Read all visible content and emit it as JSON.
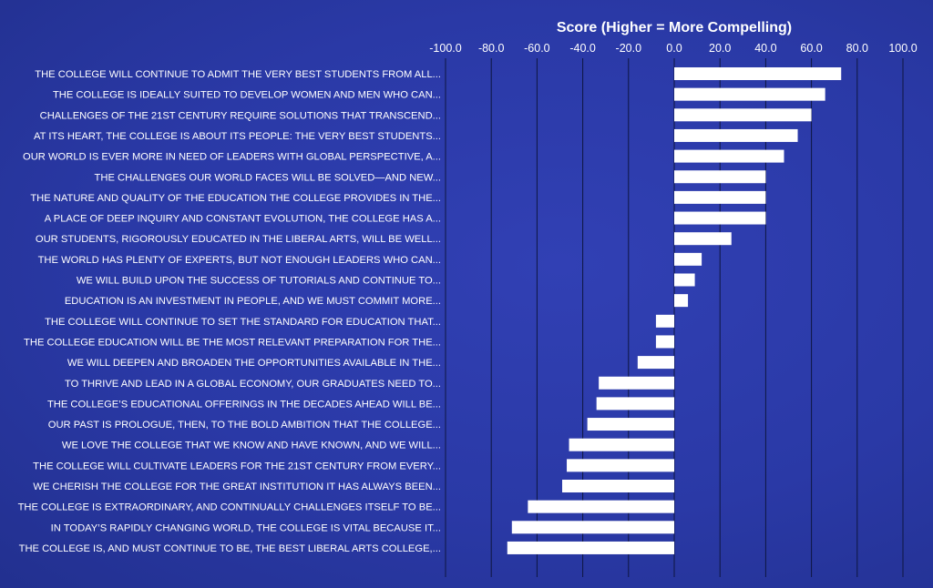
{
  "chart_data": {
    "type": "bar",
    "orientation": "horizontal",
    "title": "Score  (Higher = More Compelling)",
    "xlabel": "",
    "ylabel": "",
    "xlim": [
      -100,
      100
    ],
    "x_ticks": [
      "-100.0",
      "-80.0",
      "-60.0",
      "-40.0",
      "-20.0",
      "0.0",
      "20.0",
      "40.0",
      "60.0",
      "80.0",
      "100.0"
    ],
    "x_tick_values": [
      -100,
      -80,
      -60,
      -40,
      -20,
      0,
      20,
      40,
      60,
      80,
      100
    ],
    "grid": true,
    "legend": "none",
    "bar_color": "#ffffff",
    "background_color": "#2a3aa8",
    "categories": [
      "THE COLLEGE WILL CONTINUE TO ADMIT THE VERY BEST STUDENTS FROM ALL...",
      "THE COLLEGE IS IDEALLY SUITED TO DEVELOP WOMEN AND MEN WHO CAN...",
      "CHALLENGES OF THE 21ST CENTURY REQUIRE SOLUTIONS THAT TRANSCEND...",
      "AT ITS HEART, THE COLLEGE IS ABOUT ITS PEOPLE: THE VERY BEST STUDENTS...",
      "OUR WORLD IS EVER MORE IN NEED OF LEADERS WITH GLOBAL PERSPECTIVE, A...",
      "THE CHALLENGES OUR WORLD FACES WILL BE SOLVED—AND NEW...",
      "THE NATURE AND QUALITY OF THE EDUCATION THE COLLEGE PROVIDES IN THE...",
      "A PLACE OF DEEP INQUIRY AND CONSTANT EVOLUTION, THE COLLEGE HAS A...",
      "OUR STUDENTS, RIGOROUSLY EDUCATED IN THE LIBERAL ARTS, WILL BE WELL...",
      "THE WORLD HAS PLENTY OF EXPERTS, BUT NOT ENOUGH LEADERS WHO CAN...",
      "WE WILL BUILD UPON THE SUCCESS OF TUTORIALS AND CONTINUE TO...",
      "EDUCATION IS AN INVESTMENT IN PEOPLE, AND WE MUST COMMIT MORE...",
      "THE COLLEGE WILL CONTINUE TO SET THE STANDARD FOR EDUCATION THAT...",
      "THE COLLEGE EDUCATION WILL BE THE MOST RELEVANT PREPARATION FOR THE...",
      "WE WILL DEEPEN AND BROADEN THE OPPORTUNITIES AVAILABLE IN THE...",
      "TO THRIVE AND LEAD IN A GLOBAL ECONOMY, OUR GRADUATES NEED TO...",
      "THE COLLEGE’S EDUCATIONAL OFFERINGS IN THE DECADES AHEAD WILL BE...",
      "OUR PAST IS PROLOGUE, THEN, TO THE BOLD AMBITION THAT THE COLLEGE...",
      "WE LOVE THE COLLEGE THAT WE KNOW AND HAVE KNOWN, AND WE WILL...",
      "THE COLLEGE WILL CULTIVATE LEADERS FOR THE 21ST CENTURY FROM EVERY...",
      "WE CHERISH THE COLLEGE FOR THE GREAT INSTITUTION IT HAS ALWAYS BEEN...",
      "THE COLLEGE IS EXTRAORDINARY, AND CONTINUALLY CHALLENGES ITSELF TO BE...",
      "IN TODAY’S RAPIDLY CHANGING WORLD, THE COLLEGE IS VITAL BECAUSE IT...",
      "THE COLLEGE IS, AND MUST CONTINUE TO BE, THE BEST LIBERAL ARTS COLLEGE,..."
    ],
    "values": [
      73,
      66,
      60,
      54,
      48,
      40,
      40,
      40,
      25,
      12,
      9,
      6,
      -8,
      -8,
      -16,
      -33,
      -34,
      -38,
      -46,
      -47,
      -49,
      -64,
      -71,
      -73
    ]
  }
}
